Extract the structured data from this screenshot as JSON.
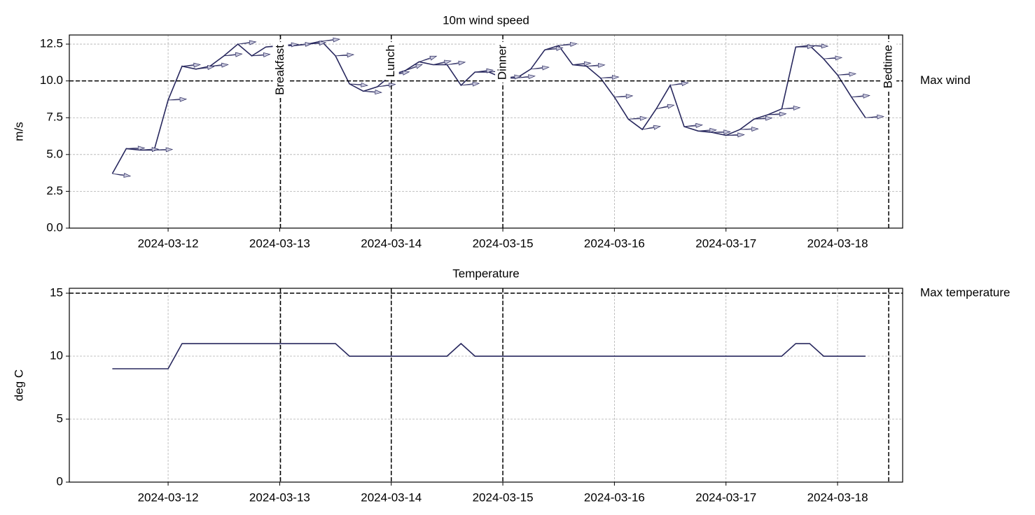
{
  "chart_data": [
    {
      "type": "line",
      "title": "10m wind speed",
      "ylabel": "m/s",
      "color": "#28285e",
      "grid": true,
      "x": [
        "2024-03-11 12:00",
        "2024-03-11 15:00",
        "2024-03-11 18:00",
        "2024-03-11 21:00",
        "2024-03-12 00:00",
        "2024-03-12 03:00",
        "2024-03-12 06:00",
        "2024-03-12 09:00",
        "2024-03-12 12:00",
        "2024-03-12 15:00",
        "2024-03-12 18:00",
        "2024-03-12 21:00",
        "2024-03-13 00:00",
        "2024-03-13 03:00",
        "2024-03-13 06:00",
        "2024-03-13 09:00",
        "2024-03-13 12:00",
        "2024-03-13 15:00",
        "2024-03-13 18:00",
        "2024-03-13 21:00",
        "2024-03-14 00:00",
        "2024-03-14 03:00",
        "2024-03-14 06:00",
        "2024-03-14 09:00",
        "2024-03-14 12:00",
        "2024-03-14 15:00",
        "2024-03-14 18:00",
        "2024-03-14 21:00",
        "2024-03-15 00:00",
        "2024-03-15 03:00",
        "2024-03-15 06:00",
        "2024-03-15 09:00",
        "2024-03-15 12:00",
        "2024-03-15 15:00",
        "2024-03-15 18:00",
        "2024-03-15 21:00",
        "2024-03-16 00:00",
        "2024-03-16 03:00",
        "2024-03-16 06:00",
        "2024-03-16 09:00",
        "2024-03-16 12:00",
        "2024-03-16 15:00",
        "2024-03-16 18:00",
        "2024-03-16 21:00",
        "2024-03-17 00:00",
        "2024-03-17 03:00",
        "2024-03-17 06:00",
        "2024-03-17 09:00",
        "2024-03-17 12:00",
        "2024-03-17 15:00",
        "2024-03-17 18:00",
        "2024-03-17 21:00",
        "2024-03-18 00:00",
        "2024-03-18 03:00",
        "2024-03-18 06:00"
      ],
      "values": [
        3.7,
        5.4,
        5.3,
        5.3,
        8.7,
        11.0,
        10.8,
        11.0,
        11.7,
        12.5,
        11.7,
        12.3,
        12.4,
        12.4,
        12.5,
        12.7,
        11.7,
        9.8,
        9.3,
        9.6,
        10.4,
        10.7,
        11.3,
        11.1,
        11.1,
        9.7,
        10.6,
        10.6,
        10.2,
        10.2,
        10.8,
        12.1,
        12.4,
        11.1,
        11.0,
        10.2,
        8.9,
        7.4,
        6.7,
        8.1,
        9.7,
        6.9,
        6.6,
        6.5,
        6.3,
        6.7,
        7.4,
        7.7,
        8.1,
        12.3,
        12.4,
        11.5,
        10.4,
        8.9,
        7.5
      ],
      "arrow_angles": [
        -8,
        2,
        3,
        2,
        3,
        5,
        8,
        5,
        6,
        7,
        5,
        4,
        4,
        6,
        5,
        6,
        4,
        -5,
        -4,
        8,
        10,
        20,
        18,
        12,
        8,
        6,
        6,
        5,
        5,
        6,
        6,
        7,
        6,
        5,
        4,
        3,
        4,
        4,
        10,
        12,
        8,
        5,
        3,
        2,
        2,
        2,
        4,
        3,
        4,
        2,
        -2,
        4,
        4,
        5,
        4
      ],
      "xlim": [
        "2024-03-11 02:45",
        "2024-03-18 14:00"
      ],
      "xticks": [
        "2024-03-12",
        "2024-03-13",
        "2024-03-14",
        "2024-03-15",
        "2024-03-16",
        "2024-03-17",
        "2024-03-18"
      ],
      "ylim": [
        0,
        13.12
      ],
      "yticks": [
        {
          "value": 0,
          "label": "0.0"
        },
        {
          "value": 2.5,
          "label": "2.5"
        },
        {
          "value": 5,
          "label": "5.0"
        },
        {
          "value": 7.5,
          "label": "7.5"
        },
        {
          "value": 10,
          "label": "10.0"
        },
        {
          "value": 12.5,
          "label": "12.5"
        }
      ],
      "hline": {
        "value": 10,
        "label": "Max wind"
      },
      "events": [
        {
          "label": "Breakfast",
          "x": "2024-03-13 00:10"
        },
        {
          "label": "Lunch",
          "x": "2024-03-14 00:00"
        },
        {
          "label": "Dinner",
          "x": "2024-03-15 00:00"
        },
        {
          "label": "Bedtime",
          "x": "2024-03-18 11:00"
        }
      ]
    },
    {
      "type": "line",
      "title": "Temperature",
      "ylabel": "deg C",
      "color": "#28285e",
      "grid": true,
      "x": [
        "2024-03-11 12:00",
        "2024-03-11 15:00",
        "2024-03-11 18:00",
        "2024-03-11 21:00",
        "2024-03-12 00:00",
        "2024-03-12 03:00",
        "2024-03-12 06:00",
        "2024-03-12 09:00",
        "2024-03-12 12:00",
        "2024-03-12 15:00",
        "2024-03-12 18:00",
        "2024-03-12 21:00",
        "2024-03-13 00:00",
        "2024-03-13 03:00",
        "2024-03-13 06:00",
        "2024-03-13 09:00",
        "2024-03-13 12:00",
        "2024-03-13 15:00",
        "2024-03-13 18:00",
        "2024-03-13 21:00",
        "2024-03-14 00:00",
        "2024-03-14 03:00",
        "2024-03-14 06:00",
        "2024-03-14 09:00",
        "2024-03-14 12:00",
        "2024-03-14 15:00",
        "2024-03-14 18:00",
        "2024-03-14 21:00",
        "2024-03-15 00:00",
        "2024-03-15 03:00",
        "2024-03-15 06:00",
        "2024-03-15 09:00",
        "2024-03-15 12:00",
        "2024-03-15 15:00",
        "2024-03-15 18:00",
        "2024-03-15 21:00",
        "2024-03-16 00:00",
        "2024-03-16 03:00",
        "2024-03-16 06:00",
        "2024-03-16 09:00",
        "2024-03-16 12:00",
        "2024-03-16 15:00",
        "2024-03-16 18:00",
        "2024-03-16 21:00",
        "2024-03-17 00:00",
        "2024-03-17 03:00",
        "2024-03-17 06:00",
        "2024-03-17 09:00",
        "2024-03-17 12:00",
        "2024-03-17 15:00",
        "2024-03-17 18:00",
        "2024-03-17 21:00",
        "2024-03-18 00:00",
        "2024-03-18 03:00",
        "2024-03-18 06:00"
      ],
      "values": [
        9,
        9,
        9,
        9,
        9,
        11,
        11,
        11,
        11,
        11,
        11,
        11,
        11,
        11,
        11,
        11,
        11,
        10,
        10,
        10,
        10,
        10,
        10,
        10,
        10,
        11,
        10,
        10,
        10,
        10,
        10,
        10,
        10,
        10,
        10,
        10,
        10,
        10,
        10,
        10,
        10,
        10,
        10,
        10,
        10,
        10,
        10,
        10,
        10,
        11,
        11,
        10,
        10,
        10,
        10
      ],
      "xlim": [
        "2024-03-11 02:45",
        "2024-03-18 14:00"
      ],
      "xticks": [
        "2024-03-12",
        "2024-03-13",
        "2024-03-14",
        "2024-03-15",
        "2024-03-16",
        "2024-03-17",
        "2024-03-18"
      ],
      "ylim": [
        0,
        15.39
      ],
      "yticks": [
        0,
        5,
        10,
        15
      ],
      "hline": {
        "value": 15,
        "label": "Max temperature"
      },
      "vlines": [
        "2024-03-13 00:10",
        "2024-03-14 00:00",
        "2024-03-15 00:00",
        "2024-03-18 11:00"
      ]
    }
  ]
}
